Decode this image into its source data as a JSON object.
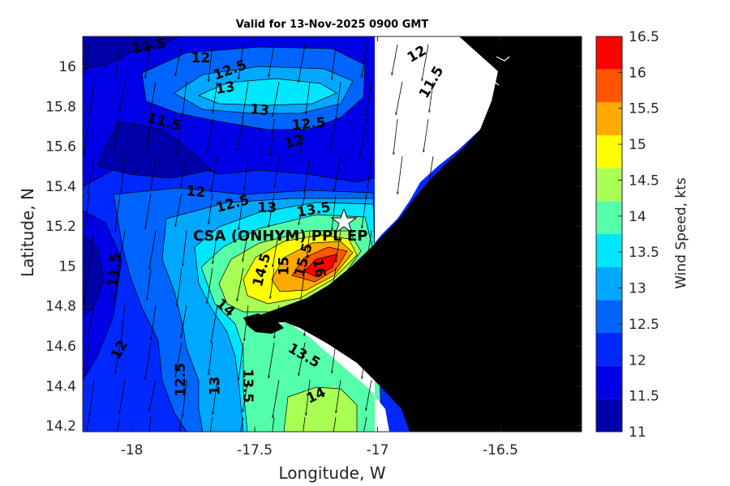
{
  "chart_data": {
    "type": "contour_map",
    "title": "Valid for 13-Nov-2025 0900 GMT",
    "xlabel": "Longitude, W",
    "ylabel": "Latitude, N",
    "xlim": [
      -18.2,
      -16.17
    ],
    "ylim": [
      14.17,
      16.15
    ],
    "xticks": [
      -18,
      -17.5,
      -17,
      -16.5
    ],
    "yticks": [
      14.2,
      14.4,
      14.6,
      14.8,
      15,
      15.2,
      15.4,
      15.6,
      15.8,
      16
    ],
    "colorbar": {
      "label": "Wind Speed, kts",
      "range": [
        11,
        16.5
      ],
      "ticks": [
        11,
        11.5,
        12,
        12.5,
        13,
        13.5,
        14,
        14.5,
        15,
        15.5,
        16,
        16.5
      ],
      "colors": [
        "#0000aa",
        "#0000e6",
        "#0028ff",
        "#0064ff",
        "#00a8ff",
        "#00e6ff",
        "#55ffaa",
        "#aaff55",
        "#ffff00",
        "#ffaa00",
        "#ff5500",
        "#ff0000"
      ]
    },
    "marker": {
      "label": "CSA (ONHYM) PPL EP",
      "lon": -17.12,
      "lat": 15.22,
      "symbol": "star"
    },
    "contour_labels": [
      {
        "text": "11.5",
        "lon": -17.93,
        "lat": 16.1,
        "angle": -10
      },
      {
        "text": "12",
        "lon": -17.72,
        "lat": 16.04,
        "angle": 0
      },
      {
        "text": "12.5",
        "lon": -17.6,
        "lat": 15.98,
        "angle": -20
      },
      {
        "text": "13",
        "lon": -17.62,
        "lat": 15.89,
        "angle": -10
      },
      {
        "text": "13",
        "lon": -17.48,
        "lat": 15.78,
        "angle": 5
      },
      {
        "text": "12.5",
        "lon": -17.28,
        "lat": 15.71,
        "angle": -5
      },
      {
        "text": "11.5",
        "lon": -17.87,
        "lat": 15.72,
        "angle": 15
      },
      {
        "text": "12",
        "lon": -17.34,
        "lat": 15.62,
        "angle": -15
      },
      {
        "text": "12",
        "lon": -16.84,
        "lat": 16.06,
        "angle": -30
      },
      {
        "text": "11.5",
        "lon": -16.78,
        "lat": 15.92,
        "angle": -60
      },
      {
        "text": "12",
        "lon": -17.74,
        "lat": 15.37,
        "angle": 5
      },
      {
        "text": "12.5",
        "lon": -17.59,
        "lat": 15.31,
        "angle": -15
      },
      {
        "text": "13",
        "lon": -17.45,
        "lat": 15.29,
        "angle": 0
      },
      {
        "text": "13.5",
        "lon": -17.26,
        "lat": 15.28,
        "angle": -10
      },
      {
        "text": "14",
        "lon": -17.62,
        "lat": 14.79,
        "angle": 40
      },
      {
        "text": "14.5",
        "lon": -17.47,
        "lat": 14.98,
        "angle": -75
      },
      {
        "text": "15",
        "lon": -17.38,
        "lat": 15.0,
        "angle": -90
      },
      {
        "text": "15.5",
        "lon": -17.3,
        "lat": 15.03,
        "angle": -75
      },
      {
        "text": "16",
        "lon": -17.24,
        "lat": 14.99,
        "angle": 80
      },
      {
        "text": "11.5",
        "lon": -18.07,
        "lat": 14.98,
        "angle": -85
      },
      {
        "text": "12",
        "lon": -18.05,
        "lat": 14.58,
        "angle": -60
      },
      {
        "text": "12.5",
        "lon": -17.8,
        "lat": 14.43,
        "angle": -90
      },
      {
        "text": "13",
        "lon": -17.66,
        "lat": 14.4,
        "angle": -90
      },
      {
        "text": "13.5",
        "lon": -17.53,
        "lat": 14.4,
        "angle": 90
      },
      {
        "text": "13.5",
        "lon": -17.3,
        "lat": 14.55,
        "angle": 30
      },
      {
        "text": "14",
        "lon": -17.25,
        "lat": 14.35,
        "angle": -25
      }
    ]
  }
}
